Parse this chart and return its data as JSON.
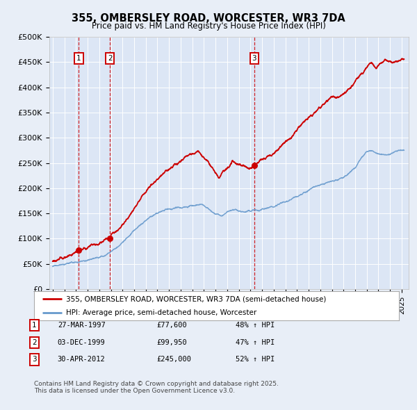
{
  "title1": "355, OMBERSLEY ROAD, WORCESTER, WR3 7DA",
  "title2": "Price paid vs. HM Land Registry's House Price Index (HPI)",
  "bg_color": "#e8eef7",
  "plot_bg_color": "#dce6f5",
  "grid_color": "#ffffff",
  "legend_line1": "355, OMBERSLEY ROAD, WORCESTER, WR3 7DA (semi-detached house)",
  "legend_line2": "HPI: Average price, semi-detached house, Worcester",
  "table_rows": [
    {
      "label": "1",
      "date": "27-MAR-1997",
      "price": "£77,600",
      "change": "48% ↑ HPI"
    },
    {
      "label": "2",
      "date": "03-DEC-1999",
      "price": "£99,950",
      "change": "47% ↑ HPI"
    },
    {
      "label": "3",
      "date": "30-APR-2012",
      "price": "£245,000",
      "change": "52% ↑ HPI"
    }
  ],
  "footnote": "Contains HM Land Registry data © Crown copyright and database right 2025.\nThis data is licensed under the Open Government Licence v3.0.",
  "hpi_line_color": "#6699cc",
  "price_line_color": "#cc0000",
  "ylim": [
    0,
    500000
  ],
  "yticks": [
    0,
    50000,
    100000,
    150000,
    200000,
    250000,
    300000,
    350000,
    400000,
    450000,
    500000
  ],
  "ytick_labels": [
    "£0",
    "£50K",
    "£100K",
    "£150K",
    "£200K",
    "£250K",
    "£300K",
    "£350K",
    "£400K",
    "£450K",
    "£500K"
  ]
}
